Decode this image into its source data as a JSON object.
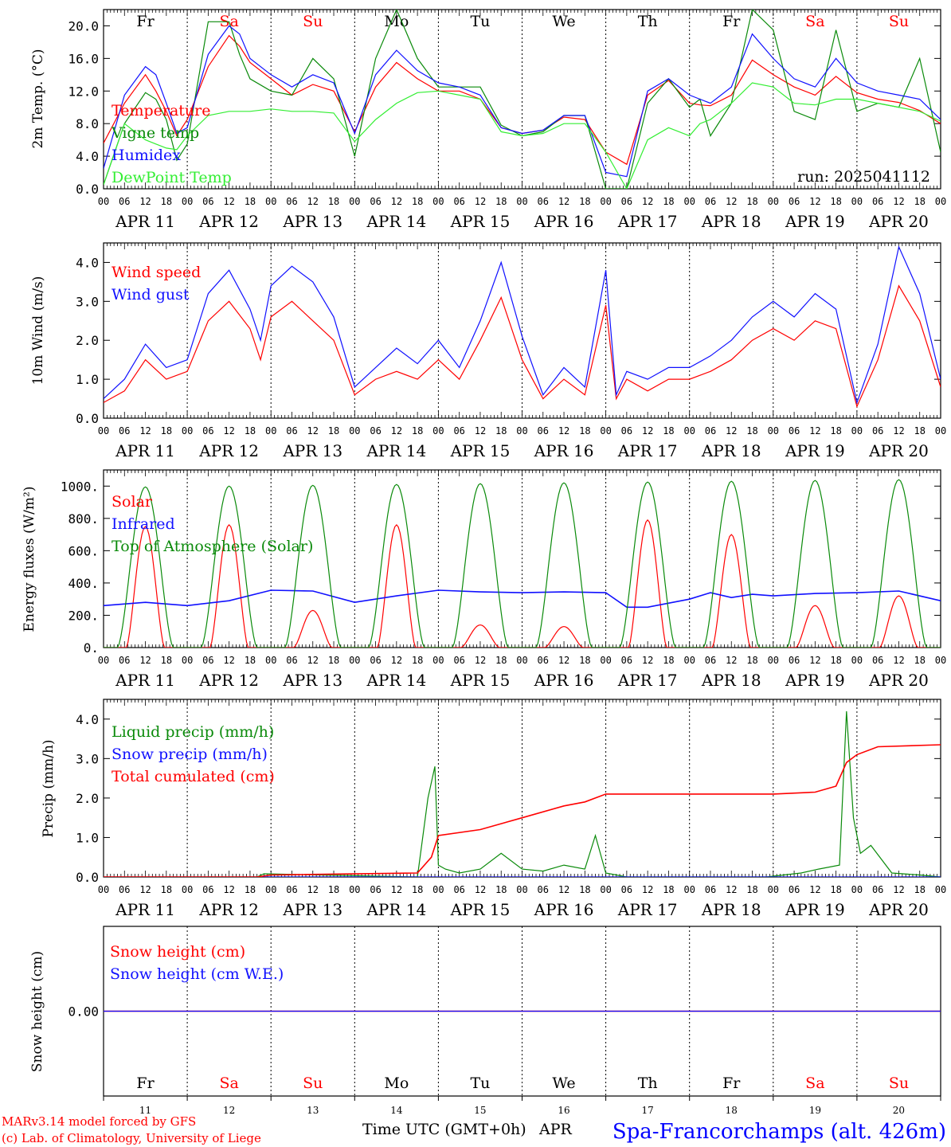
{
  "colors": {
    "red": "#ff0000",
    "green_dark": "#0a8a0a",
    "green_light": "#33ee33",
    "blue": "#1010ff",
    "black": "#000000"
  },
  "days": {
    "names": [
      "Fr",
      "Sa",
      "Su",
      "Mo",
      "Tu",
      "We",
      "Th",
      "Fr",
      "Sa",
      "Su"
    ],
    "weekend": [
      false,
      true,
      true,
      false,
      false,
      false,
      false,
      false,
      true,
      true
    ],
    "dates": [
      "APR 11",
      "APR 12",
      "APR 13",
      "APR 14",
      "APR 15",
      "APR 16",
      "APR 17",
      "APR 18",
      "APR 19",
      "APR 20"
    ],
    "numbers": [
      "11",
      "12",
      "13",
      "14",
      "15",
      "16",
      "17",
      "18",
      "19",
      "20"
    ],
    "hours": [
      "00",
      "06",
      "12",
      "18"
    ],
    "end_hour": "00"
  },
  "footer": {
    "credit_line1": "MARv3.14 model forced by GFS",
    "credit_line2": "(c) Lab. of Climatology, University of Liege",
    "time_label": "Time UTC (GMT+0h)",
    "month_label": "APR",
    "station": "Spa-Francorchamps (alt. 426m)"
  },
  "chart_data": [
    {
      "type": "line",
      "ylabel": "2m Temp. (°C)",
      "ylim": [
        0,
        22
      ],
      "yticks": [
        "0.0",
        "4.0",
        "8.0",
        "12.0",
        "16.0",
        "20.0"
      ],
      "yticks_values": [
        0,
        4,
        8,
        12,
        16,
        20
      ],
      "annotation": "run: 2025041112",
      "x_hours": [
        0,
        6,
        12,
        15,
        18,
        21,
        24,
        30,
        36,
        39,
        42,
        48,
        54,
        60,
        66,
        72,
        78,
        84,
        90,
        96,
        102,
        108,
        114,
        120,
        126,
        132,
        138,
        144,
        150,
        156,
        162,
        168,
        171,
        174,
        180,
        186,
        192,
        198,
        204,
        210,
        216,
        222,
        228,
        234,
        240
      ],
      "series": [
        {
          "name": "Temperature",
          "color": "#ff0000",
          "values": [
            5.6,
            10.5,
            14.0,
            12.0,
            9.5,
            6.5,
            8.5,
            15.0,
            18.8,
            17.5,
            15.5,
            13.5,
            11.5,
            12.8,
            12.0,
            7.0,
            12.5,
            15.5,
            13.5,
            12.0,
            12.0,
            11.0,
            7.5,
            6.8,
            7.2,
            8.8,
            8.5,
            4.5,
            3.0,
            11.5,
            13.3,
            10.5,
            10.3,
            10.2,
            11.5,
            15.8,
            14.0,
            12.5,
            11.5,
            13.8,
            11.8,
            11.0,
            10.6,
            9.6,
            8.0
          ]
        },
        {
          "name": "Vigne temp",
          "color": "#0a8a0a",
          "values": [
            0.5,
            8.0,
            11.8,
            11.0,
            8.5,
            3.5,
            5.5,
            20.5,
            20.5,
            16.5,
            13.5,
            12.0,
            11.5,
            16.0,
            13.5,
            4.0,
            16.0,
            22.0,
            16.0,
            12.5,
            12.5,
            12.5,
            7.8,
            6.5,
            7.0,
            9.0,
            9.0,
            0.0,
            0.0,
            10.5,
            13.5,
            10.0,
            11.0,
            6.5,
            10.5,
            22.0,
            19.5,
            9.5,
            8.5,
            19.5,
            9.5,
            10.5,
            10.0,
            16.0,
            4.5
          ]
        },
        {
          "name": "Humidex",
          "color": "#1010ff",
          "values": [
            2.5,
            11.5,
            15.0,
            14.0,
            10.5,
            6.8,
            7.5,
            16.5,
            20.0,
            19.0,
            16.0,
            14.0,
            12.5,
            14.0,
            13.0,
            6.8,
            14.0,
            17.0,
            14.5,
            13.0,
            12.5,
            11.5,
            7.5,
            6.8,
            7.2,
            9.0,
            9.0,
            2.0,
            1.5,
            12.0,
            13.5,
            11.5,
            11.0,
            10.5,
            12.5,
            19.0,
            16.0,
            13.5,
            12.5,
            16.0,
            13.0,
            12.0,
            11.5,
            11.0,
            8.5
          ]
        },
        {
          "name": "DewPoint Temp",
          "color": "#33ee33",
          "values": [
            0.5,
            8.0,
            6.0,
            5.5,
            5.0,
            4.8,
            6.5,
            9.0,
            9.5,
            9.5,
            9.5,
            9.8,
            9.5,
            9.5,
            9.3,
            5.8,
            8.5,
            10.5,
            11.8,
            12.0,
            11.5,
            11.0,
            7.0,
            6.5,
            6.8,
            8.0,
            8.0,
            4.5,
            0.0,
            6.0,
            7.5,
            6.5,
            8.0,
            8.5,
            10.5,
            13.0,
            12.5,
            10.5,
            10.3,
            11.0,
            11.0,
            10.5,
            10.0,
            9.5,
            8.3
          ]
        }
      ]
    },
    {
      "type": "line",
      "ylabel": "10m Wind (m/s)",
      "ylim": [
        0,
        4.5
      ],
      "yticks": [
        "0.0",
        "1.0",
        "2.0",
        "3.0",
        "4.0"
      ],
      "yticks_values": [
        0,
        1,
        2,
        3,
        4
      ],
      "x_hours": [
        0,
        6,
        12,
        18,
        24,
        30,
        36,
        42,
        45,
        48,
        54,
        60,
        66,
        72,
        78,
        84,
        90,
        96,
        102,
        108,
        114,
        120,
        126,
        132,
        138,
        144,
        147,
        150,
        156,
        162,
        168,
        174,
        180,
        186,
        192,
        198,
        204,
        210,
        216,
        222,
        228,
        234,
        240
      ],
      "series": [
        {
          "name": "Wind speed",
          "color": "#ff0000",
          "values": [
            0.4,
            0.7,
            1.5,
            1.0,
            1.2,
            2.5,
            3.0,
            2.3,
            1.5,
            2.6,
            3.0,
            2.5,
            2.0,
            0.6,
            1.0,
            1.2,
            1.0,
            1.5,
            1.0,
            2.0,
            3.1,
            1.5,
            0.5,
            1.0,
            0.6,
            2.9,
            0.5,
            1.0,
            0.7,
            1.0,
            1.0,
            1.2,
            1.5,
            2.0,
            2.3,
            2.0,
            2.5,
            2.3,
            0.3,
            1.5,
            3.4,
            2.5,
            0.8
          ]
        },
        {
          "name": "Wind gust",
          "color": "#1010ff",
          "values": [
            0.5,
            1.0,
            1.9,
            1.3,
            1.5,
            3.2,
            3.8,
            2.8,
            2.0,
            3.4,
            3.9,
            3.5,
            2.6,
            0.8,
            1.3,
            1.8,
            1.4,
            2.0,
            1.3,
            2.5,
            4.0,
            2.1,
            0.6,
            1.3,
            0.8,
            3.8,
            0.6,
            1.2,
            1.0,
            1.3,
            1.3,
            1.6,
            2.0,
            2.6,
            3.0,
            2.6,
            3.2,
            2.8,
            0.4,
            1.9,
            4.4,
            3.2,
            1.0
          ]
        }
      ]
    },
    {
      "type": "line",
      "ylabel": "Energy fluxes (W/m²)",
      "ylim": [
        0,
        1100
      ],
      "yticks": [
        "0.",
        "200.",
        "400.",
        "600.",
        "800.",
        "1000."
      ],
      "yticks_values": [
        0,
        200,
        400,
        600,
        800,
        1000
      ],
      "series": [
        {
          "name": "Solar",
          "color": "#ff0000",
          "daily_peaks": [
            750,
            760,
            230,
            760,
            140,
            130,
            790,
            700,
            260,
            320
          ]
        },
        {
          "name": "Infrared",
          "color": "#1010ff",
          "x_hours": [
            0,
            12,
            24,
            36,
            48,
            60,
            72,
            84,
            96,
            108,
            120,
            132,
            144,
            150,
            156,
            168,
            174,
            180,
            186,
            192,
            204,
            216,
            228,
            240
          ],
          "values": [
            260,
            280,
            260,
            290,
            355,
            350,
            280,
            320,
            355,
            345,
            340,
            345,
            340,
            250,
            250,
            300,
            340,
            310,
            330,
            320,
            335,
            340,
            350,
            290
          ]
        },
        {
          "name": "Top of Atmosphere (Solar)",
          "color": "#0a8a0a",
          "daily_peaks": [
            995,
            1000,
            1005,
            1010,
            1015,
            1020,
            1025,
            1030,
            1035,
            1040
          ]
        }
      ]
    },
    {
      "type": "line",
      "ylabel": "Precip (mm/h)",
      "ylim": [
        0,
        4.5
      ],
      "yticks": [
        "0.0",
        "1.0",
        "2.0",
        "3.0",
        "4.0"
      ],
      "yticks_values": [
        0,
        1,
        2,
        3,
        4
      ],
      "series": [
        {
          "name": "Liquid precip (mm/h)",
          "color": "#0a8a0a",
          "x_hours": [
            0,
            44,
            46,
            90,
            93,
            95,
            96,
            98,
            102,
            108,
            114,
            120,
            126,
            132,
            138,
            141,
            144,
            150,
            168,
            190,
            200,
            205,
            211,
            213,
            215,
            217,
            220,
            226,
            234,
            240
          ],
          "values": [
            0,
            0,
            0.08,
            0,
            2.0,
            2.8,
            0.3,
            0.2,
            0.1,
            0.2,
            0.6,
            0.2,
            0.15,
            0.3,
            0.2,
            1.05,
            0.1,
            0,
            0,
            0,
            0.1,
            0.2,
            0.3,
            4.2,
            1.5,
            0.6,
            0.8,
            0.1,
            0.05,
            0
          ]
        },
        {
          "name": "Snow precip (mm/h)",
          "color": "#1010ff",
          "x_hours": [
            0,
            240
          ],
          "values": [
            0,
            0
          ]
        },
        {
          "name": "Total cumulated (cm)",
          "color": "#ff0000",
          "x_hours": [
            0,
            44,
            48,
            90,
            94,
            96,
            108,
            120,
            132,
            138,
            144,
            168,
            192,
            204,
            210,
            213,
            216,
            222,
            240
          ],
          "values": [
            0,
            0,
            0.05,
            0.1,
            0.5,
            1.05,
            1.2,
            1.5,
            1.8,
            1.9,
            2.1,
            2.1,
            2.1,
            2.15,
            2.3,
            2.9,
            3.1,
            3.3,
            3.35
          ]
        }
      ]
    },
    {
      "type": "line",
      "ylabel": "Snow height (cm)",
      "ylim": [
        -1,
        1
      ],
      "yticks": [
        "0.00"
      ],
      "yticks_values": [
        0
      ],
      "series": [
        {
          "name": "Snow height (cm)",
          "color": "#ff0000",
          "x_hours": [
            0,
            240
          ],
          "values": [
            0,
            0
          ]
        },
        {
          "name": "Snow height (cm W.E.)",
          "color": "#1010ff",
          "x_hours": [
            0,
            240
          ],
          "values": [
            0,
            0
          ]
        }
      ]
    }
  ]
}
